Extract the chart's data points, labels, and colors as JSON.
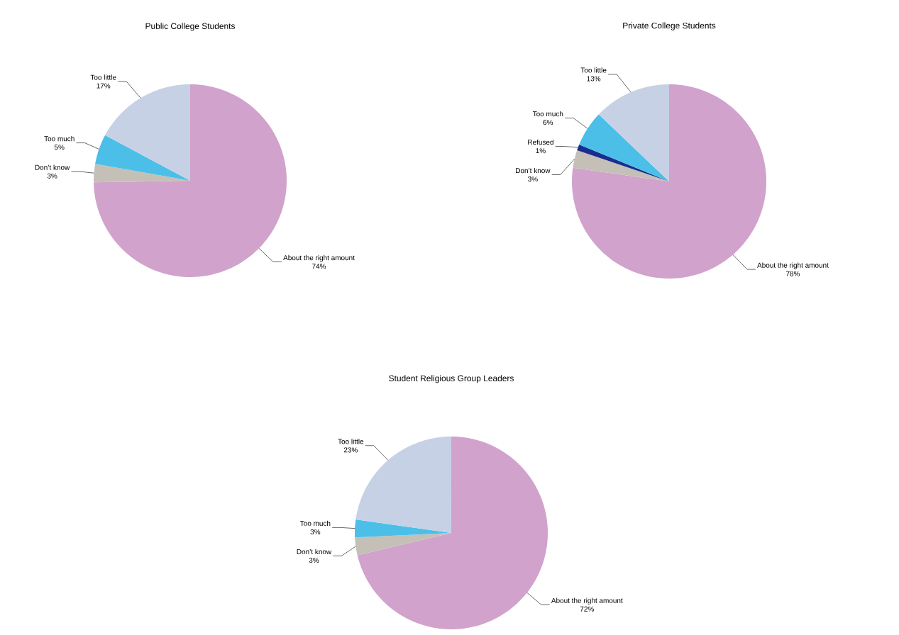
{
  "chart_data": [
    {
      "type": "pie",
      "title": "Public College Students",
      "categories": [
        "About the right amount",
        "Don’t know",
        "Too much",
        "Too little"
      ],
      "values": [
        74,
        3,
        5,
        17
      ],
      "value_labels": [
        "74%",
        "3%",
        "5%",
        "17%"
      ],
      "colors": [
        "#d1a2cc",
        "#c4c0b8",
        "#4bbfe8",
        "#c7d1e5"
      ]
    },
    {
      "type": "pie",
      "title": "Private College Students",
      "categories": [
        "About the right amount",
        "Don’t know",
        "Refused",
        "Too much",
        "Too little"
      ],
      "values": [
        78,
        3,
        1,
        6,
        13
      ],
      "value_labels": [
        "78%",
        "3%",
        "1%",
        "6%",
        "13%"
      ],
      "colors": [
        "#d1a2cc",
        "#c4c0b8",
        "#1a2e8f",
        "#4bbfe8",
        "#c7d1e5"
      ]
    },
    {
      "type": "pie",
      "title": "Student Religious Group Leaders",
      "categories": [
        "About the right amount",
        "Don’t know",
        "Too much",
        "Too little"
      ],
      "values": [
        72,
        3,
        3,
        23
      ],
      "value_labels": [
        "72%",
        "3%",
        "3%",
        "23%"
      ],
      "colors": [
        "#d1a2cc",
        "#c4c0b8",
        "#4bbfe8",
        "#c7d1e5"
      ]
    }
  ]
}
